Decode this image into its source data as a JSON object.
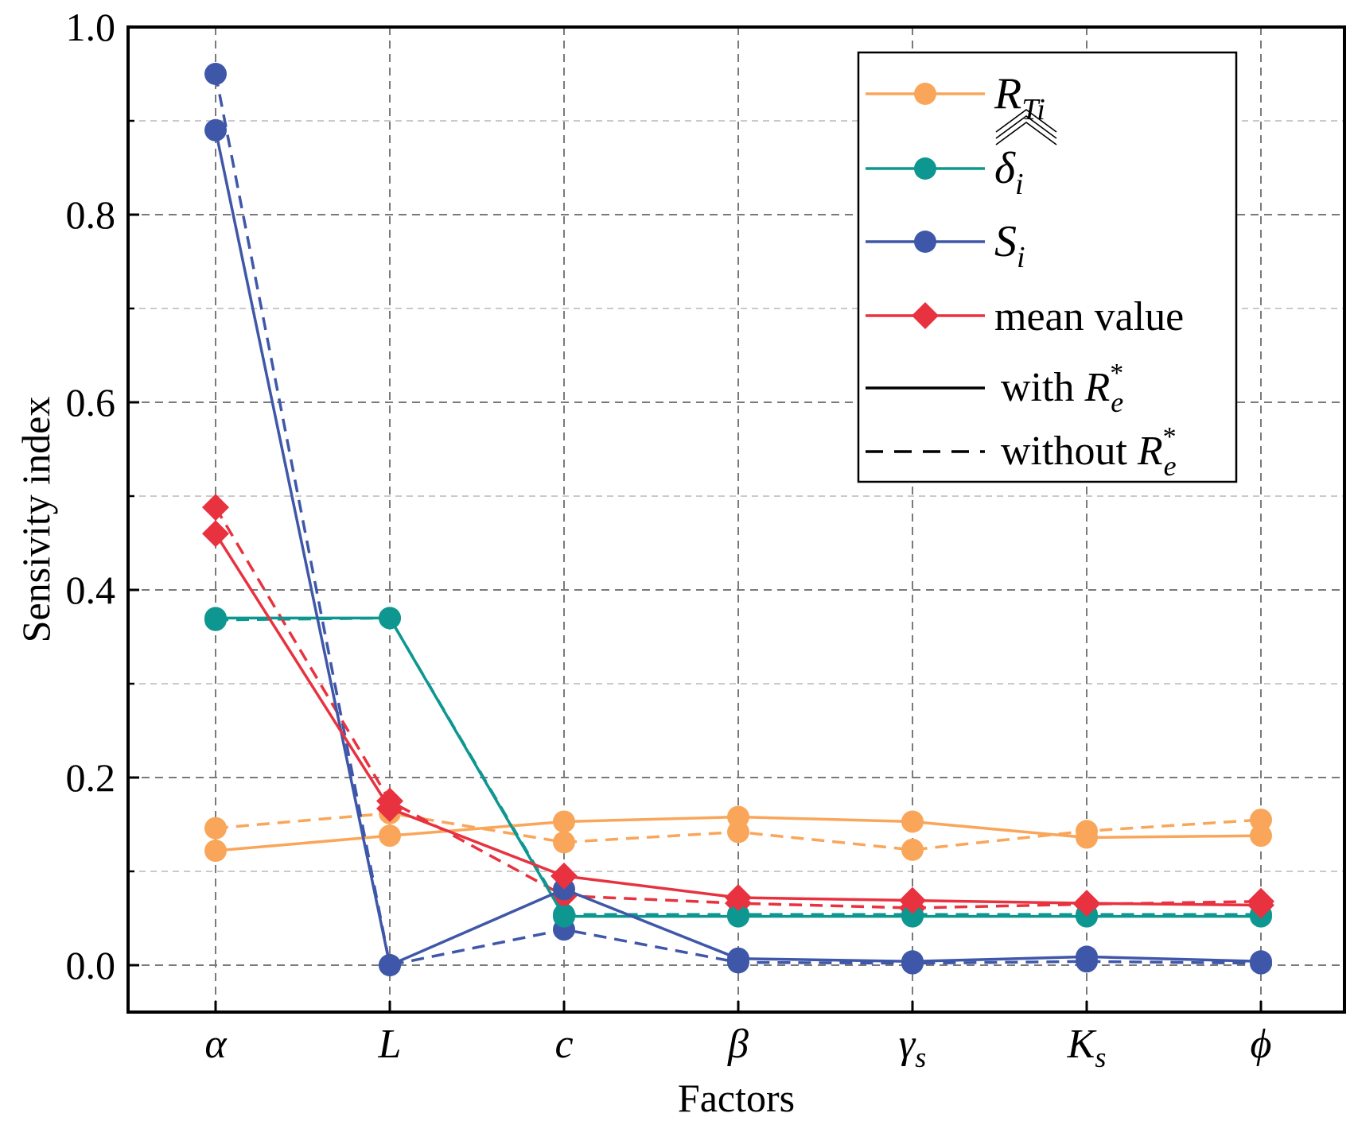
{
  "chart_data": {
    "type": "line",
    "title": "",
    "xlabel": "Factors",
    "ylabel": "Sensivity index",
    "ylim": [
      -0.05,
      1.0
    ],
    "yticks": [
      "0.0",
      "0.2",
      "0.4",
      "0.6",
      "0.8",
      "1.0"
    ],
    "categories": [
      {
        "base": "α",
        "sub": ""
      },
      {
        "base": "L",
        "sub": ""
      },
      {
        "base": "c",
        "sub": ""
      },
      {
        "base": "β",
        "sub": ""
      },
      {
        "base": "γ",
        "sub": "s"
      },
      {
        "base": "K",
        "sub": "s"
      },
      {
        "base": "ϕ",
        "sub": ""
      }
    ],
    "grid": true,
    "legend_position": "top-right",
    "series": [
      {
        "name": "R_Ti with R_e*",
        "label_base": "R",
        "label_sub": "Ti",
        "label_hat": false,
        "marker": "circle",
        "color": "#F9A65A",
        "style": "solid",
        "values": [
          0.122,
          0.138,
          0.153,
          0.158,
          0.153,
          0.136,
          0.138
        ]
      },
      {
        "name": "R_Ti without R_e*",
        "marker": "circle",
        "color": "#F9A65A",
        "style": "dashed",
        "values": [
          0.146,
          0.162,
          0.131,
          0.142,
          0.123,
          0.143,
          0.155
        ]
      },
      {
        "name": "δ_i with R_e*",
        "label_base": "δ",
        "label_sub": "i",
        "label_hat": true,
        "marker": "circle",
        "color": "#0E9690",
        "style": "solid",
        "values": [
          0.37,
          0.37,
          0.052,
          0.052,
          0.052,
          0.052,
          0.052
        ]
      },
      {
        "name": "δ_i without R_e*",
        "marker": "circle",
        "color": "#0E9690",
        "style": "dashed",
        "values": [
          0.368,
          0.37,
          0.054,
          0.054,
          0.054,
          0.054,
          0.054
        ]
      },
      {
        "name": "S_i with R_e*",
        "label_base": "S",
        "label_sub": "i",
        "label_hat": false,
        "marker": "circle",
        "color": "#3F57A8",
        "style": "solid",
        "values": [
          0.89,
          0.0,
          0.081,
          0.007,
          0.004,
          0.009,
          0.004
        ]
      },
      {
        "name": "S_i without R_e*",
        "marker": "circle",
        "color": "#3F57A8",
        "style": "dashed",
        "values": [
          0.95,
          0.0,
          0.038,
          0.003,
          0.002,
          0.004,
          0.002
        ]
      },
      {
        "name": "mean value with R_e*",
        "label_text": "mean value",
        "marker": "diamond",
        "color": "#E8323F",
        "style": "solid",
        "values": [
          0.46,
          0.167,
          0.095,
          0.072,
          0.069,
          0.066,
          0.064
        ]
      },
      {
        "name": "mean value without R_e*",
        "marker": "diamond",
        "color": "#E8323F",
        "style": "dashed",
        "values": [
          0.488,
          0.175,
          0.074,
          0.066,
          0.061,
          0.065,
          0.068
        ]
      }
    ],
    "legend": {
      "entries_series": [
        "R_Ti with R_e*",
        "δ_i with R_e*",
        "S_i with R_e*",
        "mean value with R_e*"
      ],
      "with_label": "with",
      "without_label": "without",
      "line_ref_base": "R",
      "line_ref_sub": "e",
      "line_ref_sup": "*"
    }
  }
}
